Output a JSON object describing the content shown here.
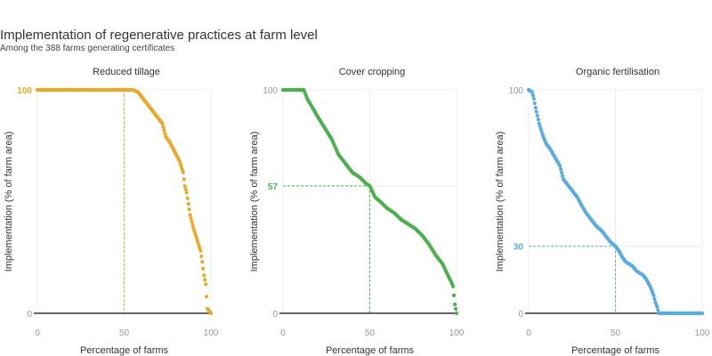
{
  "title": "Implementation of regenerative practices at farm level",
  "subtitle": "Among the 388 farms generating certificates",
  "chart_data": [
    {
      "type": "scatter",
      "title": "Reduced tillage",
      "xlabel": "Percentage of farms",
      "ylabel": "Implementation (% of farm area)",
      "xlim": [
        0,
        100
      ],
      "ylim": [
        0,
        100
      ],
      "xticks": [
        "0",
        "50",
        "100"
      ],
      "yticks": [
        "0",
        "100"
      ],
      "highlight_label": "100",
      "highlight_y": 100,
      "reference_x": 50,
      "color": "#e8a928",
      "curve": [
        [
          0,
          100
        ],
        [
          55,
          100
        ],
        [
          58,
          99
        ],
        [
          62,
          95
        ],
        [
          66,
          91
        ],
        [
          70,
          87
        ],
        [
          72,
          85
        ],
        [
          73,
          82
        ],
        [
          74,
          79
        ],
        [
          76,
          77
        ],
        [
          78,
          74
        ],
        [
          80,
          71
        ],
        [
          82,
          68
        ],
        [
          84,
          63
        ],
        [
          85,
          57
        ],
        [
          86,
          54
        ],
        [
          88,
          44
        ],
        [
          90,
          38
        ],
        [
          92,
          33
        ],
        [
          94,
          28
        ],
        [
          95,
          23
        ],
        [
          96,
          17
        ],
        [
          97,
          13
        ],
        [
          98,
          2
        ],
        [
          100,
          0
        ]
      ]
    },
    {
      "type": "scatter",
      "title": "Cover cropping",
      "xlabel": "Percentage of farms",
      "ylabel": "Implementation (% of farm area)",
      "xlim": [
        0,
        100
      ],
      "ylim": [
        0,
        100
      ],
      "xticks": [
        "0",
        "50",
        "100"
      ],
      "yticks": [
        "0",
        "57",
        "100"
      ],
      "highlight_label": "57",
      "highlight_y": 57,
      "reference_x": 50,
      "color": "#4caf50",
      "curve": [
        [
          0,
          100
        ],
        [
          12,
          100
        ],
        [
          14,
          96
        ],
        [
          17,
          92
        ],
        [
          20,
          88
        ],
        [
          24,
          83
        ],
        [
          28,
          78
        ],
        [
          32,
          71
        ],
        [
          36,
          67
        ],
        [
          40,
          63
        ],
        [
          44,
          61
        ],
        [
          48,
          58
        ],
        [
          50,
          57
        ],
        [
          53,
          52
        ],
        [
          56,
          50
        ],
        [
          60,
          47
        ],
        [
          64,
          45
        ],
        [
          68,
          42
        ],
        [
          72,
          40
        ],
        [
          76,
          38
        ],
        [
          80,
          35
        ],
        [
          84,
          31
        ],
        [
          88,
          26
        ],
        [
          92,
          22
        ],
        [
          95,
          17
        ],
        [
          97,
          14
        ],
        [
          98,
          12
        ],
        [
          99,
          4
        ],
        [
          100,
          0
        ]
      ]
    },
    {
      "type": "scatter",
      "title": "Organic fertilisation",
      "xlabel": "Percentage of farms",
      "ylabel": "Implementation (% of farm area)",
      "xlim": [
        0,
        100
      ],
      "ylim": [
        0,
        100
      ],
      "xticks": [
        "0",
        "50",
        "100"
      ],
      "yticks": [
        "0",
        "30",
        "100"
      ],
      "highlight_label": "30",
      "highlight_y": 30,
      "reference_x": 50,
      "color": "#5aabe0",
      "curve": [
        [
          0,
          100
        ],
        [
          2,
          99
        ],
        [
          3,
          96
        ],
        [
          4,
          92
        ],
        [
          6,
          85
        ],
        [
          8,
          80
        ],
        [
          10,
          76
        ],
        [
          12,
          74
        ],
        [
          15,
          70
        ],
        [
          18,
          66
        ],
        [
          20,
          60
        ],
        [
          22,
          58
        ],
        [
          25,
          55
        ],
        [
          28,
          52
        ],
        [
          30,
          49
        ],
        [
          33,
          45
        ],
        [
          36,
          42
        ],
        [
          39,
          39
        ],
        [
          42,
          37
        ],
        [
          45,
          34
        ],
        [
          47,
          32
        ],
        [
          50,
          30
        ],
        [
          52,
          28
        ],
        [
          54,
          25
        ],
        [
          56,
          23
        ],
        [
          58,
          22
        ],
        [
          60,
          21
        ],
        [
          62,
          19
        ],
        [
          64,
          18
        ],
        [
          66,
          17
        ],
        [
          68,
          15
        ],
        [
          70,
          12
        ],
        [
          72,
          8
        ],
        [
          73,
          5
        ],
        [
          74,
          3
        ],
        [
          75,
          0
        ],
        [
          100,
          0
        ]
      ]
    }
  ]
}
